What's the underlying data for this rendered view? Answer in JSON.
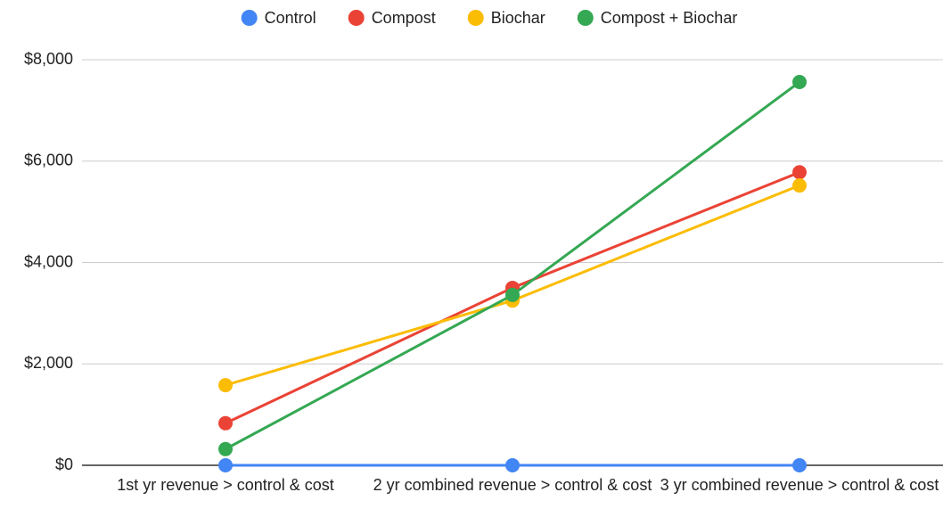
{
  "chart_data": {
    "type": "line",
    "categories": [
      "1st yr revenue > control & cost",
      "2 yr combined revenue > control & cost",
      "3 yr combined revenue > control & cost"
    ],
    "series": [
      {
        "name": "Control",
        "color": "#4285f4",
        "values": [
          0,
          0,
          0
        ]
      },
      {
        "name": "Compost",
        "color": "#ea4335",
        "values": [
          830,
          3500,
          5780
        ]
      },
      {
        "name": "Biochar",
        "color": "#fbbc04",
        "values": [
          1580,
          3250,
          5520
        ]
      },
      {
        "name": "Compost + Biochar",
        "color": "#34a853",
        "values": [
          320,
          3360,
          7560
        ]
      }
    ],
    "ylim": [
      0,
      8000
    ],
    "yticks": [
      {
        "value": 0,
        "label": "$0"
      },
      {
        "value": 2000,
        "label": "$2,000"
      },
      {
        "value": 4000,
        "label": "$4,000"
      },
      {
        "value": 6000,
        "label": "$6,000"
      },
      {
        "value": 8000,
        "label": "$8,000"
      }
    ],
    "grid": true,
    "legend": "top"
  }
}
